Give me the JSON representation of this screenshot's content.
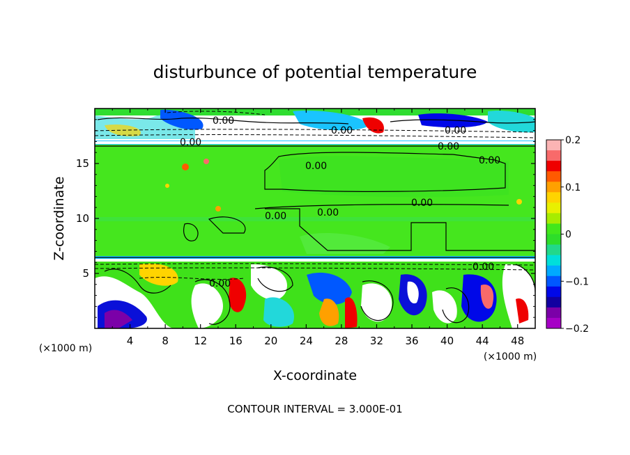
{
  "chart_data": {
    "type": "heatmap",
    "title": "disturbunce of potential temperature",
    "xlabel": "X-coordinate",
    "ylabel": "Z-coordinate",
    "x_unit": "(×1000 m)",
    "z_unit": "(×1000 m)",
    "xlim": [
      0,
      50
    ],
    "ylim": [
      0,
      20
    ],
    "x_ticks": [
      "4",
      "8",
      "12",
      "16",
      "20",
      "24",
      "28",
      "32",
      "36",
      "40",
      "44",
      "48"
    ],
    "y_ticks": [
      "5",
      "10",
      "15"
    ],
    "colorbar": {
      "range": [
        -0.2,
        0.2
      ],
      "tick_labels": [
        "0.2",
        "0.1",
        "0",
        "−0.1",
        "−0.2"
      ],
      "tick_values": [
        0.2,
        0.1,
        0,
        -0.1,
        -0.2
      ],
      "colors": [
        "#fbb4b4",
        "#f86a6a",
        "#ef0000",
        "#ff5a00",
        "#ffa000",
        "#ffd400",
        "#e9f000",
        "#a7ec00",
        "#42e71b",
        "#2edd2a",
        "#22d88a",
        "#00dfda",
        "#00aaff",
        "#0058ff",
        "#0008e8",
        "#1100a0",
        "#7b00a8",
        "#a600c6"
      ]
    },
    "contour_labels": [
      "0.00",
      "0.00",
      "0.00",
      "0.00",
      "0.00",
      "0.00",
      "0.00",
      "0.00",
      "0.00",
      "0.00",
      "0.00",
      "0.00"
    ],
    "contour_interval_text": "CONTOUR INTERVAL = 3.000E-01",
    "bands": [
      {
        "zmin": 0,
        "zmax": 6.2,
        "description_value": "mixed"
      },
      {
        "zmin": 6.2,
        "zmax": 6.5,
        "value": -0.05
      },
      {
        "zmin": 6.5,
        "zmax": 16.8,
        "value": 0.0
      },
      {
        "zmin": 16.8,
        "zmax": 17.1,
        "value": -0.05
      },
      {
        "zmin": 17.1,
        "zmax": 20,
        "description_value": "mixed"
      }
    ]
  }
}
